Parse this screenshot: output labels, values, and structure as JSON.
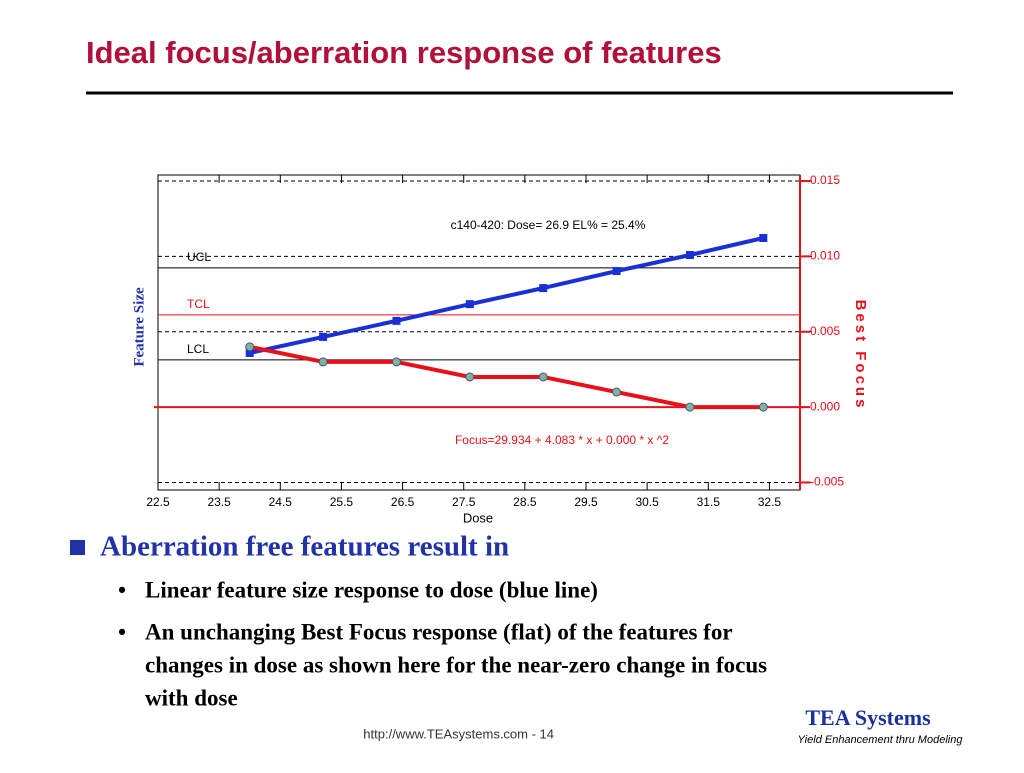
{
  "title": "Ideal focus/aberration response of features",
  "bullets": [
    {
      "text": "Aberration free features result in",
      "items": [
        [
          "Linear feature size response to dose (blue line)"
        ],
        [
          "An unchanging Best Focus response (flat) of the features for",
          "changes in dose as shown here for the near-zero change in focus",
          "with dose"
        ]
      ]
    }
  ],
  "footer": {
    "url": "http://www.TEAsystems.com - 14",
    "logo": "TEA Systems",
    "tagline": "Yield Enhancement thru Modeling"
  },
  "chart_data": {
    "type": "line",
    "x_label": "Dose",
    "y_label": "Feature Size",
    "y2_label": "Best Focus",
    "annotations": [
      "c140-420: Dose= 26.9 EL% = 25.4%",
      "Focus=29.934 + 4.083 * x + 0.000 * x ^2"
    ],
    "x": [
      24,
      25.2,
      26.4,
      27.6,
      28.8,
      30.0,
      31.2,
      32.4
    ],
    "series": [
      {
        "name": "Feature Size",
        "color": "#1a2fd6",
        "values": [
          43.5,
          48.6,
          53.7,
          59.0,
          64.1,
          69.5,
          74.6,
          80.0
        ]
      },
      {
        "name": "Best Focus",
        "color": "#e8101a",
        "axis": "y2",
        "values": [
          0.004,
          0.003,
          0.003,
          0.002,
          0.002,
          0.001,
          0,
          0
        ]
      }
    ],
    "reference_lines": [
      {
        "label": "UCL",
        "value": 70.5,
        "color": "#000000"
      },
      {
        "label": "TCL",
        "value": 55.6,
        "color": "#e8101a"
      },
      {
        "label": "LCL",
        "value": 41.3,
        "color": "#000000"
      }
    ],
    "xlim": [
      22.5,
      33.0
    ],
    "xticks": [
      22.5,
      23.5,
      24.5,
      25.5,
      26.5,
      27.5,
      28.5,
      29.5,
      30.5,
      31.5,
      32.5
    ],
    "ylim": [
      0,
      100
    ],
    "y2lim": [
      -0.0055,
      0.0154
    ],
    "y2ticks": [
      {
        "value": 0.015,
        "label": "0.015"
      },
      {
        "value": 0.01,
        "label": "0.010"
      },
      {
        "value": 0.005,
        "label": "0.005"
      },
      {
        "value": 0,
        "label": "0.000"
      },
      {
        "value": -0.005,
        "label": "-0.005"
      }
    ],
    "grid": true
  }
}
